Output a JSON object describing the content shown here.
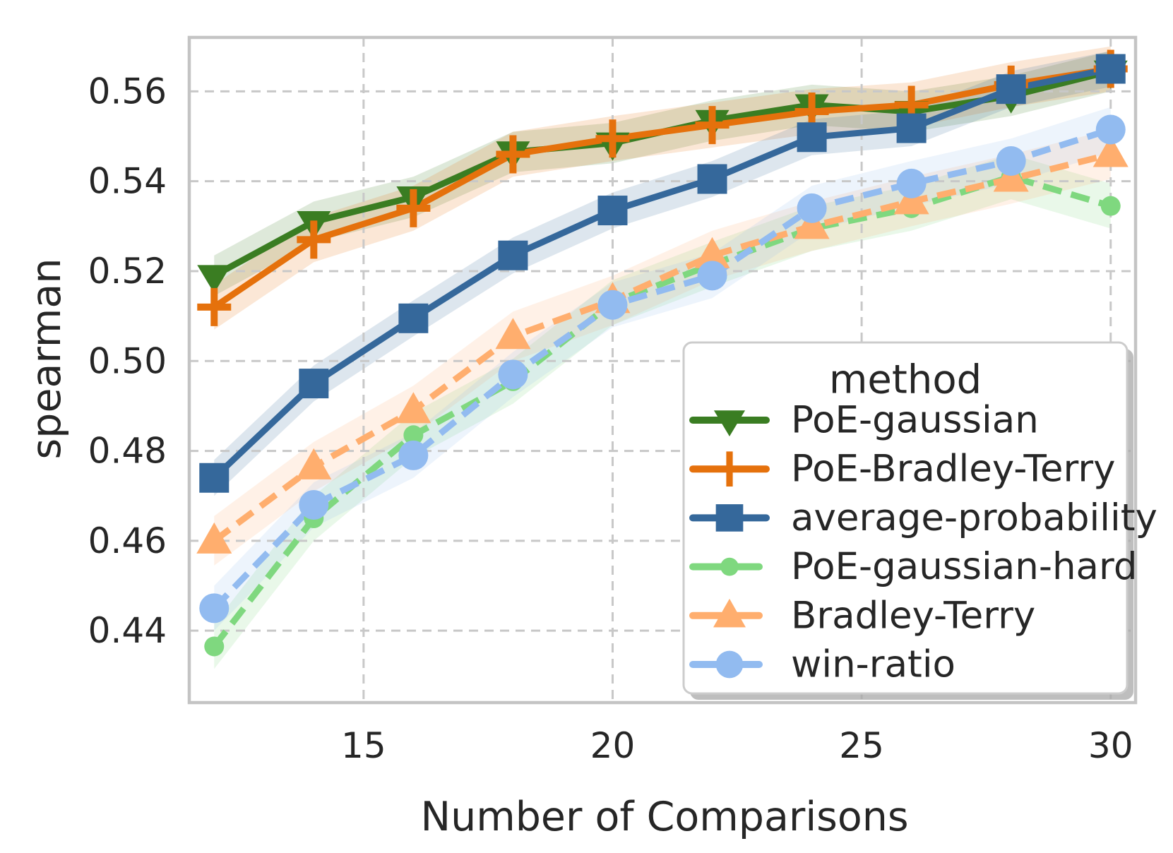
{
  "figure": {
    "background": "#ffffff",
    "text_color": "#262626",
    "frame_color": "#c4c4c4",
    "grid_color": "#c8c8c8"
  },
  "chart_data": {
    "type": "line",
    "title": "",
    "xlabel": "Number of Comparisons",
    "ylabel": "spearman",
    "legend_title": "method",
    "legend_position": "lower-right-inside",
    "grid": true,
    "x": [
      12,
      14,
      16,
      18,
      20,
      22,
      24,
      26,
      28,
      30
    ],
    "xlim": [
      11.5,
      30.5
    ],
    "ylim": [
      0.424,
      0.572
    ],
    "xticks": [
      15,
      20,
      25,
      30
    ],
    "xtick_labels": [
      "15",
      "20",
      "25",
      "30"
    ],
    "yticks": [
      0.44,
      0.46,
      0.48,
      0.5,
      0.52,
      0.54,
      0.56
    ],
    "ytick_labels": [
      "0.44",
      "0.46",
      "0.48",
      "0.50",
      "0.52",
      "0.54",
      "0.56"
    ],
    "series": [
      {
        "name": "PoE-gaussian",
        "color": "#3A7D22",
        "line": "solid",
        "marker": "triangle-down",
        "band": 0.0045,
        "values": [
          0.519,
          0.531,
          0.5365,
          0.5465,
          0.5485,
          0.5535,
          0.557,
          0.5555,
          0.559,
          0.5645
        ]
      },
      {
        "name": "PoE-Bradley-Terry",
        "color": "#E5710C",
        "line": "solid",
        "marker": "plus",
        "band": 0.005,
        "values": [
          0.512,
          0.527,
          0.534,
          0.546,
          0.5495,
          0.5525,
          0.5555,
          0.557,
          0.5615,
          0.565
        ]
      },
      {
        "name": "average-probability",
        "color": "#35689B",
        "line": "solid",
        "marker": "square",
        "band": 0.004,
        "values": [
          0.474,
          0.495,
          0.5095,
          0.5235,
          0.5335,
          0.5405,
          0.5498,
          0.5518,
          0.5605,
          0.565
        ]
      },
      {
        "name": "PoE-gaussian-hard",
        "color": "#7FD87F",
        "line": "dashed",
        "marker": "circle-small",
        "band": 0.005,
        "values": [
          0.4365,
          0.465,
          0.4835,
          0.4955,
          0.513,
          0.5215,
          0.5295,
          0.534,
          0.541,
          0.5345
        ]
      },
      {
        "name": "Bradley-Terry",
        "color": "#FFAE6E",
        "line": "dashed",
        "marker": "triangle-up",
        "band": 0.0055,
        "values": [
          0.46,
          0.4765,
          0.489,
          0.5055,
          0.5135,
          0.5235,
          0.53,
          0.5355,
          0.5405,
          0.546
        ]
      },
      {
        "name": "win-ratio",
        "color": "#92BBF0",
        "line": "dashed",
        "marker": "circle",
        "band": 0.005,
        "values": [
          0.445,
          0.468,
          0.479,
          0.497,
          0.5125,
          0.519,
          0.534,
          0.5395,
          0.5445,
          0.5515
        ]
      }
    ]
  }
}
